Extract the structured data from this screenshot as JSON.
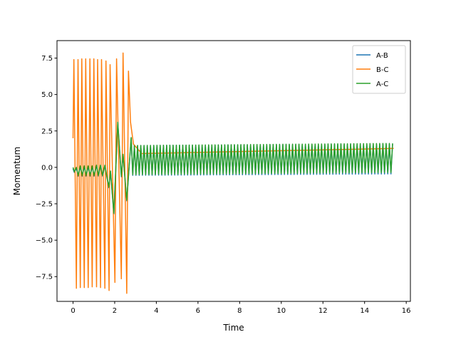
{
  "chart_data": {
    "type": "line",
    "title": "",
    "xlabel": "Time",
    "ylabel": "Momentum",
    "xlim": [
      -0.77,
      16.2
    ],
    "ylim": [
      -9.2,
      8.7
    ],
    "xticks": [
      0,
      2,
      4,
      6,
      8,
      10,
      12,
      14,
      16
    ],
    "xtick_labels": [
      "0",
      "2",
      "4",
      "6",
      "8",
      "10",
      "12",
      "14",
      "16"
    ],
    "yticks": [
      7.5,
      5.0,
      2.5,
      0.0,
      -2.5,
      -5.0,
      -7.5
    ],
    "ytick_labels": [
      "7.5",
      "5.0",
      "2.5",
      "0.0",
      "−2.5",
      "−5.0",
      "−7.5"
    ],
    "grid": false,
    "legend_position": "top-right",
    "series": [
      {
        "name": "A-B",
        "color": "#1f77b4",
        "x": [
          0,
          0.06,
          0.16,
          0.25,
          0.35,
          0.44,
          0.54,
          0.63,
          0.73,
          0.82,
          0.92,
          1.01,
          1.13,
          1.22,
          1.32,
          1.42,
          1.53,
          1.63,
          1.72,
          1.8,
          1.96,
          2.15,
          2.32,
          2.4,
          2.58,
          2.79
        ],
        "y": [
          -0.1,
          -0.35,
          -0.05,
          -0.6,
          0.05,
          -0.6,
          0.05,
          -0.6,
          0.05,
          -0.6,
          0.05,
          -0.6,
          0.1,
          -0.6,
          0.1,
          -0.6,
          0.1,
          -0.7,
          -1.4,
          -0.3,
          -3.2,
          3.05,
          -0.65,
          0.85,
          -2.3,
          2.0
        ],
        "tail": {
          "x_start": 2.79,
          "x_end": 15.4,
          "period": 0.155,
          "max_start": 1.5,
          "max_end": 1.6,
          "min_start": -0.55,
          "min_end": -0.45
        }
      },
      {
        "name": "B-C",
        "color": "#ff7f0e",
        "x": [
          0,
          0.04,
          0.16,
          0.24,
          0.35,
          0.42,
          0.54,
          0.61,
          0.73,
          0.81,
          0.92,
          1.0,
          1.13,
          1.18,
          1.32,
          1.37,
          1.53,
          1.58,
          1.73,
          1.78,
          2.01,
          2.09,
          2.32,
          2.4,
          2.58,
          2.66,
          2.76,
          2.9,
          3.3,
          15.4
        ],
        "y": [
          2.0,
          7.4,
          -8.3,
          7.4,
          -8.25,
          7.45,
          -8.25,
          7.45,
          -8.25,
          7.45,
          -8.2,
          7.45,
          -8.2,
          7.4,
          -8.25,
          7.4,
          -8.3,
          7.3,
          -8.45,
          7.05,
          -7.9,
          7.45,
          -7.65,
          7.85,
          -8.65,
          6.6,
          3.1,
          1.6,
          0.95,
          1.3
        ]
      },
      {
        "name": "A-C",
        "color": "#2ca02c",
        "x": [
          0,
          0.06,
          0.16,
          0.25,
          0.35,
          0.44,
          0.54,
          0.63,
          0.73,
          0.82,
          0.92,
          1.01,
          1.13,
          1.22,
          1.32,
          1.42,
          1.53,
          1.63,
          1.72,
          1.8,
          1.96,
          2.15,
          2.32,
          2.4,
          2.58,
          2.79
        ],
        "y": [
          0.0,
          -0.3,
          0.0,
          -0.55,
          0.1,
          -0.55,
          0.1,
          -0.55,
          0.1,
          -0.55,
          0.1,
          -0.55,
          0.15,
          -0.55,
          0.15,
          -0.55,
          0.15,
          -0.65,
          -1.35,
          -0.25,
          -3.15,
          3.1,
          -0.6,
          0.9,
          -2.25,
          2.05
        ],
        "tail": {
          "x_start": 2.79,
          "x_end": 15.4,
          "period": 0.155,
          "max_start": 1.5,
          "max_end": 1.65,
          "min_start": -0.5,
          "min_end": -0.35
        }
      }
    ]
  }
}
